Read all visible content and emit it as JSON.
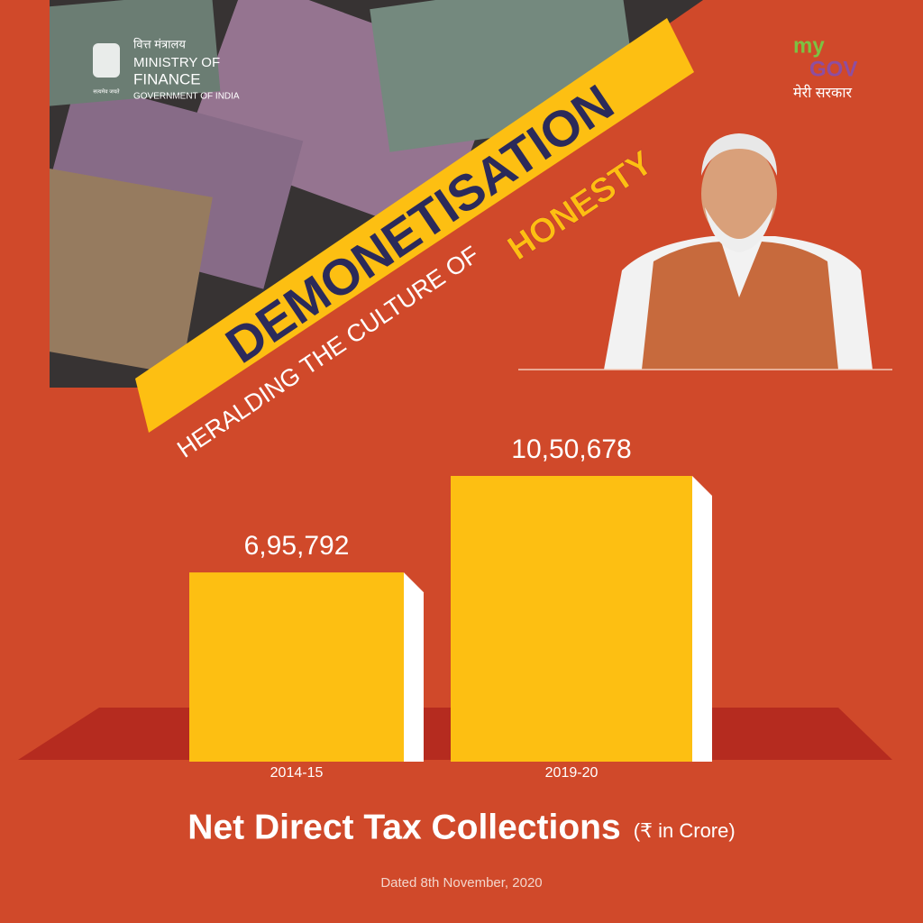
{
  "header": {
    "ministry_hindi": "वित्त मंत्रालय",
    "ministry_line1": "MINISTRY OF",
    "ministry_line2": "FINANCE",
    "ministry_line3": "GOVERNMENT OF INDIA",
    "emblem_motto": "सत्यमेव जयते",
    "mygov_my": "my",
    "mygov_gov": "GOV",
    "mygov_tagline": "मेरी सरकार"
  },
  "banner": {
    "title": "DEMONETISATION",
    "subtitle": "HERALDING THE CULTURE OF",
    "highlight": "HONESTY"
  },
  "chart_data": {
    "type": "bar",
    "title": "Net Direct Tax Collections",
    "subtitle": "(₹ in Crore)",
    "note": "Dated 8th November, 2020",
    "categories": [
      "2014-15",
      "2019-20"
    ],
    "values": [
      695792,
      1050678
    ],
    "value_labels": [
      "6,95,792",
      "10,50,678"
    ],
    "color": "#fdbf12"
  }
}
